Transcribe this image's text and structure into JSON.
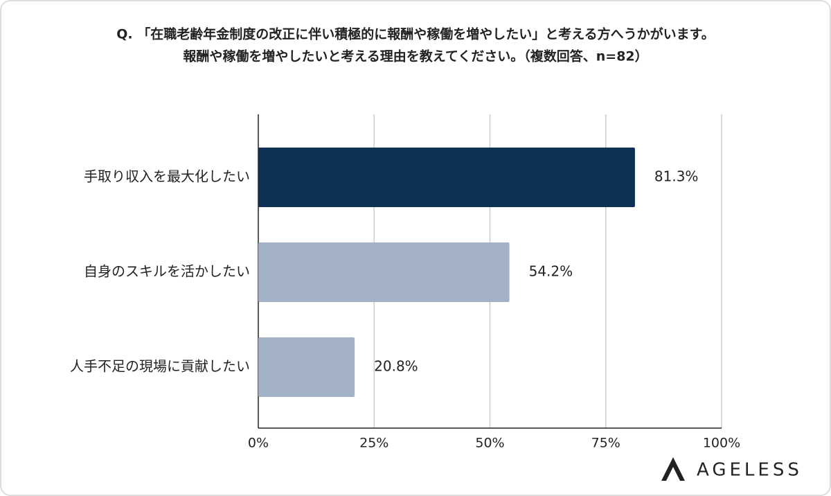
{
  "chart_data": {
    "type": "bar",
    "orientation": "horizontal",
    "title": "Q. 「在職老齢年金制度の改正に伴い積極的に報酬や稼働を増やしたい」と考える方へうかがいます。",
    "subtitle": "報酬や稼働を増やしたいと考える理由を教えてください。（複数回答、n=82）",
    "categories": [
      "手取り収入を最大化したい",
      "自身のスキルを活かしたい",
      "人手不足の現場に貢献したい"
    ],
    "values": [
      81.3,
      54.2,
      20.8
    ],
    "value_labels": [
      "81.3%",
      "54.2%",
      "20.8%"
    ],
    "colors": [
      "#0d3055",
      "#a3b1c6",
      "#a3b1c6"
    ],
    "xlim": [
      0,
      100
    ],
    "xticks": [
      {
        "value": 0,
        "label": "0%"
      },
      {
        "value": 25,
        "label": "25%"
      },
      {
        "value": 50,
        "label": "50%"
      },
      {
        "value": 75,
        "label": "75%"
      },
      {
        "value": 100,
        "label": "100%"
      }
    ],
    "grid": true
  },
  "brand": "AGELESS"
}
